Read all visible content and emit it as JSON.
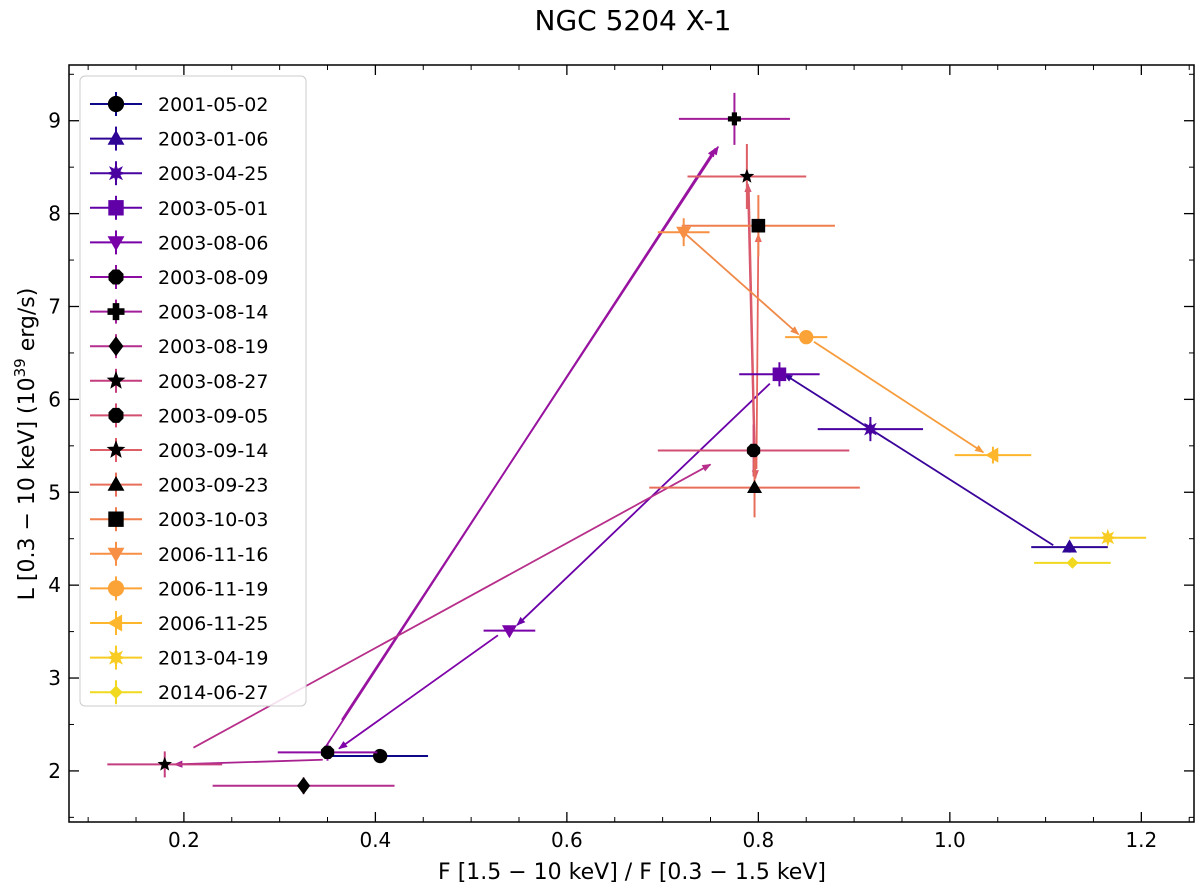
{
  "chart_data": {
    "type": "scatter",
    "title": "NGC 5204 X-1",
    "xlabel": "F [1.5 − 10 keV] / F [0.3 − 1.5 keV]",
    "ylabel_main": "L [0.3 − 10 keV] (10",
    "ylabel_sup": "39",
    "ylabel_tail": " erg/s)",
    "xlim": [
      0.08,
      1.255
    ],
    "ylim": [
      1.45,
      9.6
    ],
    "xticks": [
      0.2,
      0.4,
      0.6,
      0.8,
      1.0,
      1.2
    ],
    "xtick_labels": [
      "0.2",
      "0.4",
      "0.6",
      "0.8",
      "1.0",
      "1.2"
    ],
    "yticks": [
      2,
      3,
      4,
      5,
      6,
      7,
      8,
      9
    ],
    "ytick_labels": [
      "2",
      "3",
      "4",
      "5",
      "6",
      "7",
      "8",
      "9"
    ],
    "legend_position": "upper-left",
    "series": [
      {
        "name": "2001-05-02",
        "x": 0.405,
        "y": 2.16,
        "xerr": 0.05,
        "yerr": 0.05,
        "marker": "circle",
        "color": "#0d0887"
      },
      {
        "name": "2003-01-06",
        "x": 1.125,
        "y": 4.41,
        "xerr": 0.04,
        "yerr": 0.06,
        "marker": "triangle-up",
        "color": "#2e0595"
      },
      {
        "name": "2003-04-25",
        "x": 0.917,
        "y": 5.68,
        "xerr": 0.055,
        "yerr": 0.13,
        "marker": "star8",
        "color": "#4903a0"
      },
      {
        "name": "2003-05-01",
        "x": 0.822,
        "y": 6.27,
        "xerr": 0.042,
        "yerr": 0.13,
        "marker": "square",
        "color": "#6100a7"
      },
      {
        "name": "2003-08-06",
        "x": 0.54,
        "y": 3.51,
        "xerr": 0.027,
        "yerr": 0.04,
        "marker": "triangle-down",
        "color": "#7801a8"
      },
      {
        "name": "2003-08-09",
        "x": 0.35,
        "y": 2.2,
        "xerr": 0.052,
        "yerr": 0.09,
        "marker": "octagon",
        "color": "#8e0ca4"
      },
      {
        "name": "2003-08-14",
        "x": 0.775,
        "y": 9.02,
        "xerr": 0.058,
        "yerr": 0.28,
        "marker": "plus",
        "color": "#a21d9a"
      },
      {
        "name": "2003-08-19",
        "x": 0.325,
        "y": 1.84,
        "xerr": 0.095,
        "yerr": 0.09,
        "marker": "diamond",
        "color": "#b42e8d"
      },
      {
        "name": "2003-08-27",
        "x": 0.18,
        "y": 2.07,
        "xerr": 0.06,
        "yerr": 0.14,
        "marker": "star5",
        "color": "#c43e7f"
      },
      {
        "name": "2003-09-05",
        "x": 0.795,
        "y": 5.45,
        "xerr": 0.1,
        "yerr": 0.28,
        "marker": "octagon",
        "color": "#d24f71"
      },
      {
        "name": "2003-09-14",
        "x": 0.788,
        "y": 8.4,
        "xerr": 0.062,
        "yerr": 0.35,
        "marker": "star5",
        "color": "#dd5e66"
      },
      {
        "name": "2003-09-23",
        "x": 0.796,
        "y": 5.05,
        "xerr": 0.11,
        "yerr": 0.32,
        "marker": "triangle-up",
        "color": "#e76f5a"
      },
      {
        "name": "2003-10-03",
        "x": 0.8,
        "y": 7.87,
        "xerr": 0.08,
        "yerr": 0.33,
        "marker": "square",
        "color": "#f07f4f"
      },
      {
        "name": "2006-11-16",
        "x": 0.722,
        "y": 7.8,
        "xerr": 0.027,
        "yerr": 0.15,
        "marker": "triangle-down",
        "color": "#f79044"
      },
      {
        "name": "2006-11-19",
        "x": 0.85,
        "y": 6.67,
        "xerr": 0.022,
        "yerr": 0.07,
        "marker": "circle",
        "color": "#fca338"
      },
      {
        "name": "2006-11-25",
        "x": 1.045,
        "y": 5.4,
        "xerr": 0.04,
        "yerr": 0.09,
        "marker": "triangle-left",
        "color": "#feb72d"
      },
      {
        "name": "2013-04-19",
        "x": 1.165,
        "y": 4.51,
        "xerr": 0.04,
        "yerr": 0.04,
        "marker": "star8",
        "color": "#f8cc22"
      },
      {
        "name": "2014-06-27",
        "x": 1.128,
        "y": 4.24,
        "xerr": 0.04,
        "yerr": 0.05,
        "marker": "small-diamond",
        "color": "#f0d91e"
      }
    ],
    "arrows": [
      {
        "from": [
          1.108,
          4.43
        ],
        "to": [
          0.827,
          6.27
        ],
        "color": "#3a049a"
      },
      {
        "from": [
          0.812,
          6.17
        ],
        "to": [
          0.548,
          3.57
        ],
        "color": "#6a00a8"
      },
      {
        "from": [
          0.528,
          3.46
        ],
        "to": [
          0.362,
          2.24
        ],
        "color": "#7f03a8"
      },
      {
        "from": [
          0.345,
          2.21
        ],
        "to": [
          0.755,
          8.7
        ],
        "color": "#9814a0"
      },
      {
        "from": [
          0.365,
          2.55
        ],
        "to": [
          0.758,
          8.72
        ],
        "color": "#9814a0"
      },
      {
        "from": [
          0.345,
          2.12
        ],
        "to": [
          0.19,
          2.07
        ],
        "color": "#a8218f"
      },
      {
        "from": [
          0.21,
          2.25
        ],
        "to": [
          0.75,
          5.3
        ],
        "color": "#b72f8a"
      },
      {
        "from": [
          0.796,
          5.32
        ],
        "to": [
          0.789,
          8.32
        ],
        "color": "#d55571"
      },
      {
        "from": [
          0.79,
          8.28
        ],
        "to": [
          0.797,
          5.15
        ],
        "color": "#dc5c69"
      },
      {
        "from": [
          0.798,
          5.25
        ],
        "to": [
          0.8,
          7.78
        ],
        "color": "#e6665f"
      },
      {
        "from": [
          0.724,
          7.78
        ],
        "to": [
          0.842,
          6.7
        ],
        "color": "#f08a48"
      },
      {
        "from": [
          0.858,
          6.62
        ],
        "to": [
          1.035,
          5.43
        ],
        "color": "#f79c3c"
      }
    ]
  }
}
